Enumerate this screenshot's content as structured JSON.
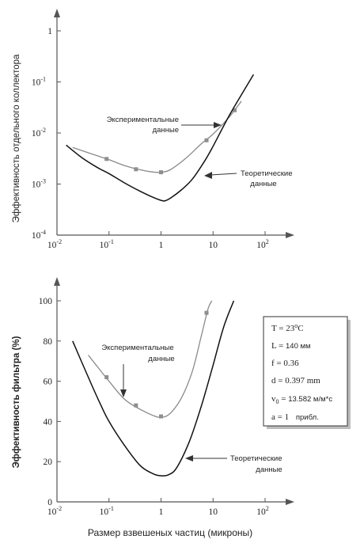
{
  "chart_data": [
    {
      "type": "line",
      "title": "",
      "ylabel": "Эффективность отдельного коллектора",
      "xlabel": "",
      "x_scale": "log",
      "y_scale": "log",
      "xlim": [
        0.01,
        200
      ],
      "ylim": [
        0.0001,
        10
      ],
      "x_ticks": [
        {
          "value": 0.01,
          "base": "10",
          "exp": "-2"
        },
        {
          "value": 0.1,
          "base": "10",
          "exp": "-1"
        },
        {
          "value": 1,
          "base": "1",
          "exp": ""
        },
        {
          "value": 10,
          "base": "10",
          "exp": ""
        },
        {
          "value": 100,
          "base": "10",
          "exp": "2"
        }
      ],
      "y_ticks": [
        {
          "value": 0.0001,
          "base": "10",
          "exp": "-4"
        },
        {
          "value": 0.001,
          "base": "10",
          "exp": "-3"
        },
        {
          "value": 0.01,
          "base": "10",
          "exp": "-2"
        },
        {
          "value": 0.1,
          "base": "10",
          "exp": "-1"
        },
        {
          "value": 1,
          "base": "1",
          "exp": ""
        }
      ],
      "series": [
        {
          "name": "Экспериментальные данные",
          "color": "#8a8a8a",
          "points": [
            [
              0.09,
              0.0031
            ],
            [
              0.33,
              0.00195
            ],
            [
              1.0,
              0.0017
            ],
            [
              7.5,
              0.0072
            ],
            [
              26,
              0.028
            ]
          ],
          "curve": [
            [
              0.02,
              0.0052
            ],
            [
              0.05,
              0.0038
            ],
            [
              0.1,
              0.003
            ],
            [
              0.2,
              0.0023
            ],
            [
              0.4,
              0.0019
            ],
            [
              0.7,
              0.00172
            ],
            [
              1.0,
              0.0017
            ],
            [
              1.5,
              0.0019
            ],
            [
              3,
              0.0032
            ],
            [
              6,
              0.0062
            ],
            [
              10,
              0.0095
            ],
            [
              20,
              0.02
            ],
            [
              35,
              0.042
            ]
          ]
        },
        {
          "name": "Теоретические данные",
          "color": "#111111",
          "points": [],
          "curve": [
            [
              0.015,
              0.0058
            ],
            [
              0.03,
              0.0033
            ],
            [
              0.06,
              0.0021
            ],
            [
              0.1,
              0.0016
            ],
            [
              0.2,
              0.00105
            ],
            [
              0.4,
              0.00072
            ],
            [
              0.7,
              0.00055
            ],
            [
              1.0,
              0.00048
            ],
            [
              1.2,
              0.00047
            ],
            [
              1.6,
              0.00055
            ],
            [
              2.5,
              0.00078
            ],
            [
              4,
              0.00125
            ],
            [
              7,
              0.0029
            ],
            [
              10,
              0.0055
            ],
            [
              20,
              0.021
            ],
            [
              40,
              0.07
            ],
            [
              60,
              0.14
            ]
          ]
        }
      ],
      "annotations": [
        {
          "lines": [
            "Экспериментальные",
            "данные"
          ],
          "target_series": "Экспериментальные данные"
        },
        {
          "lines": [
            "Теоретические",
            "данные"
          ],
          "target_series": "Теоретические данные"
        }
      ]
    },
    {
      "type": "line",
      "title": "",
      "ylabel": "Эффективность фильтра (%)",
      "xlabel": "Размер взвешеных частиц (микроны)",
      "x_scale": "log",
      "y_scale": "linear",
      "xlim": [
        0.01,
        200
      ],
      "ylim": [
        0,
        100
      ],
      "x_ticks": [
        {
          "value": 0.01,
          "base": "10",
          "exp": "-2"
        },
        {
          "value": 0.1,
          "base": "10",
          "exp": "-1"
        },
        {
          "value": 1,
          "base": "1",
          "exp": ""
        },
        {
          "value": 10,
          "base": "10",
          "exp": ""
        },
        {
          "value": 100,
          "base": "10",
          "exp": "2"
        }
      ],
      "y_ticks": [
        {
          "value": 0,
          "label": "0"
        },
        {
          "value": 20,
          "label": "20"
        },
        {
          "value": 40,
          "label": "40"
        },
        {
          "value": 60,
          "label": "60"
        },
        {
          "value": 80,
          "label": "80"
        },
        {
          "value": 100,
          "label": "100"
        }
      ],
      "series": [
        {
          "name": "Экспериментальные данные",
          "color": "#8a8a8a",
          "points": [
            [
              0.09,
              62
            ],
            [
              0.33,
              48
            ],
            [
              1.0,
              42.5
            ],
            [
              7.5,
              94
            ]
          ],
          "curve": [
            [
              0.04,
              73
            ],
            [
              0.07,
              65
            ],
            [
              0.1,
              60
            ],
            [
              0.2,
              51
            ],
            [
              0.4,
              46
            ],
            [
              0.7,
              43
            ],
            [
              1.0,
              42
            ],
            [
              1.5,
              44
            ],
            [
              2.5,
              52
            ],
            [
              4,
              65
            ],
            [
              6,
              83
            ],
            [
              8,
              96
            ],
            [
              9.5,
              100
            ]
          ]
        },
        {
          "name": "Теоретические данные",
          "color": "#111111",
          "points": [],
          "curve": [
            [
              0.02,
              80
            ],
            [
              0.04,
              62
            ],
            [
              0.07,
              48
            ],
            [
              0.1,
              40
            ],
            [
              0.2,
              28
            ],
            [
              0.4,
              18
            ],
            [
              0.7,
              14
            ],
            [
              1.0,
              13
            ],
            [
              1.4,
              13.5
            ],
            [
              2,
              17
            ],
            [
              3.5,
              30
            ],
            [
              6,
              48
            ],
            [
              10,
              68
            ],
            [
              16,
              87
            ],
            [
              25,
              100
            ]
          ]
        }
      ],
      "annotations": [
        {
          "lines": [
            "Экспериментальные",
            "данные"
          ],
          "target_series": "Экспериментальные данные"
        },
        {
          "lines": [
            "Теоретические",
            "данные"
          ],
          "target_series": "Теоретические данные"
        }
      ],
      "param_box": [
        {
          "text": "T = 23°C"
        },
        {
          "text": "L = 140 мм"
        },
        {
          "text": "f = 0.36"
        },
        {
          "text": "d = 0.397 mm"
        },
        {
          "text": "v0 = 13.582 м/м*с"
        },
        {
          "text": "a = 1   прибл."
        }
      ]
    }
  ]
}
